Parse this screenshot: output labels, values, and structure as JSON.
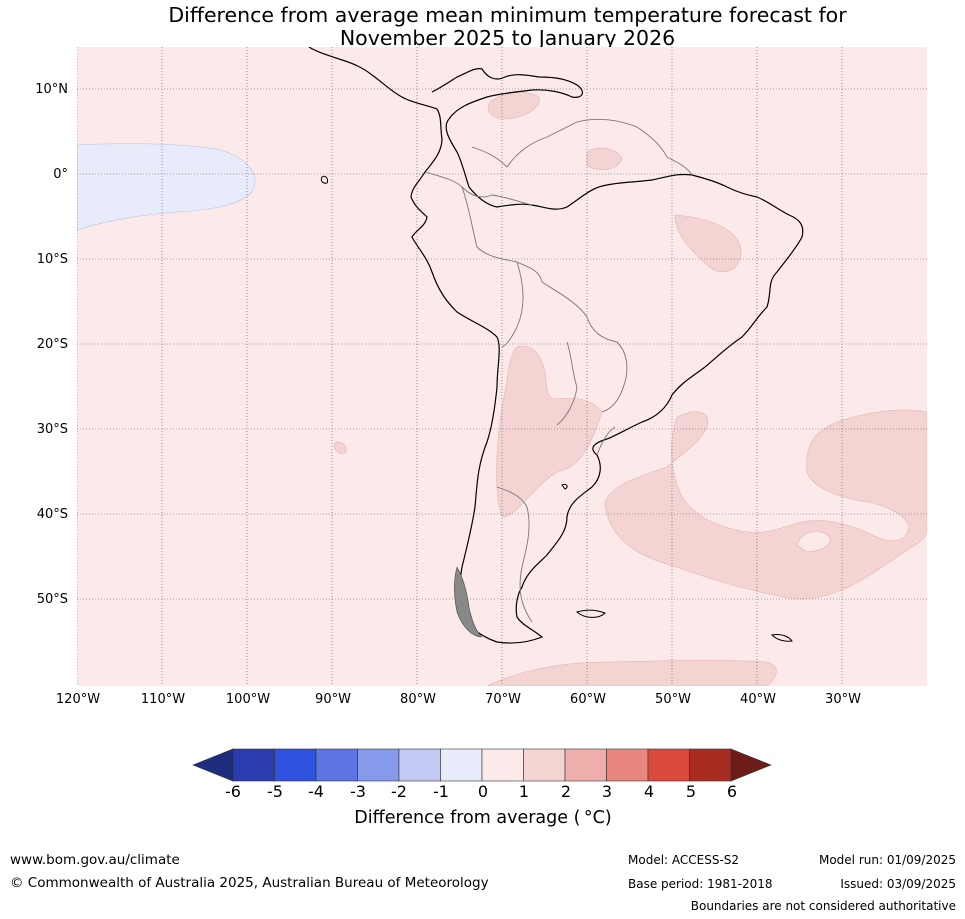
{
  "title": {
    "line1": "Difference from average mean minimum temperature forecast for",
    "line2": "November 2025 to January 2026"
  },
  "map": {
    "region": "South America",
    "background_anomaly_color": "#fbeae9",
    "lat_labels": [
      "10°N",
      "0°",
      "10°S",
      "20°S",
      "30°S",
      "40°S",
      "50°S"
    ],
    "lon_labels": [
      "120°W",
      "110°W",
      "100°W",
      "90°W",
      "80°W",
      "70°W",
      "60°W",
      "50°W",
      "40°W",
      "30°W"
    ],
    "anomaly_colors": {
      "cool_minus1_0": "#e8ecfa",
      "warm_0_1": "#fbeae9",
      "warm_1_2": "#f4d4d2"
    }
  },
  "colorbar": {
    "ticks": [
      "-6",
      "-5",
      "-4",
      "-3",
      "-2",
      "-1",
      "0",
      "1",
      "2",
      "3",
      "4",
      "5",
      "6"
    ],
    "colors": [
      "#1f2d7e",
      "#2a3cb0",
      "#2f52e0",
      "#5c75e3",
      "#8799ea",
      "#c2c9f2",
      "#e8ecfa",
      "#fbeae9",
      "#f4d4d2",
      "#eeaeaa",
      "#e88780",
      "#dc4a3d",
      "#a92c22",
      "#6e1c18"
    ],
    "label": "Difference from average ( °C)"
  },
  "footer": {
    "website": "www.bom.gov.au/climate",
    "copyright": "© Commonwealth of Australia 2025, Australian Bureau of Meteorology",
    "model": "Model: ACCESS-S2",
    "base_period": "Base period: 1981-2018",
    "model_run": "Model run: 01/09/2025",
    "issued": "Issued: 03/09/2025",
    "disclaimer": "Boundaries are not considered authoritative"
  }
}
